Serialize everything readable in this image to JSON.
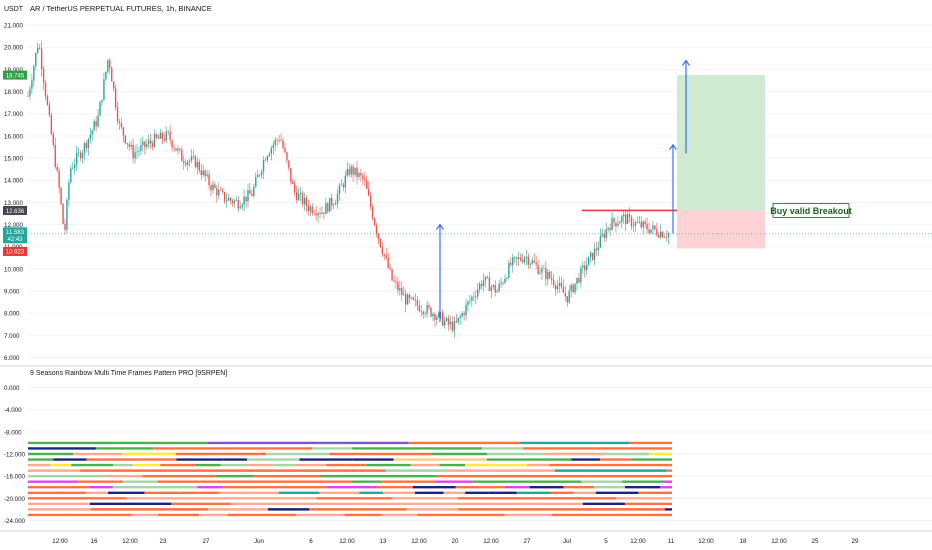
{
  "header": {
    "currency": "USDT",
    "symbol_title": "AR / TetherUS PERPETUAL FUTURES, 1h, BINANCE"
  },
  "indicator": {
    "title": "9 Seasons Rainbow Multi Time Frames Pattern PRO [9SRPEN]"
  },
  "annotation": {
    "label": "Buy valid Breakout"
  },
  "colors": {
    "up": "#26a69a",
    "down": "#ef5350",
    "profit_zone": "#c8e6c9",
    "loss_zone": "#ffcdd2",
    "arrow": "#2962ff",
    "level_line": "#f23645"
  },
  "price_badges": [
    {
      "role": "take-profit",
      "text": "18.745",
      "color": "#2e9e47"
    },
    {
      "role": "entry",
      "text": "12.636",
      "color": "#434651"
    },
    {
      "role": "last-price",
      "text": "11.583",
      "color": "#26a69a"
    },
    {
      "role": "countdown",
      "text": "42:43",
      "color": "#26a69a"
    },
    {
      "role": "stop-loss",
      "text": "10.923",
      "color": "#e53935"
    }
  ],
  "chart_data": [
    {
      "type": "candlestick",
      "title": "AR / TetherUS PERPETUAL FUTURES, 1h, BINANCE",
      "y_axis_unit": "USDT",
      "y_ticks": [
        "21.000",
        "20.000",
        "19.000",
        "18.000",
        "17.000",
        "16.000",
        "15.000",
        "14.000",
        "13.000",
        "12.000",
        "11.000",
        "10.000",
        "9.000",
        "8.000",
        "7.000",
        "6.000"
      ],
      "ylim": [
        5.8,
        21.5
      ],
      "x_ticks": [
        "12:00",
        "16",
        "12:00",
        "23",
        "27",
        "Jun",
        "6",
        "12:00",
        "13",
        "12:00",
        "20",
        "12:00",
        "27",
        "Jul",
        "5",
        "12:00",
        "11",
        "12:00",
        "18",
        "12:00",
        "25",
        "29"
      ],
      "price_path": [
        [
          0,
          17.8
        ],
        [
          1.5,
          20.3
        ],
        [
          3,
          16.8
        ],
        [
          4.5,
          13.5
        ],
        [
          5.2,
          11.5
        ],
        [
          6,
          14.5
        ],
        [
          8,
          15.5
        ],
        [
          10,
          16.8
        ],
        [
          11.5,
          19.6
        ],
        [
          13,
          16.5
        ],
        [
          15,
          15.2
        ],
        [
          18,
          15.8
        ],
        [
          20,
          16.0
        ],
        [
          22,
          15.0
        ],
        [
          24,
          14.8
        ],
        [
          26,
          13.8
        ],
        [
          28,
          13.2
        ],
        [
          30,
          13.0
        ],
        [
          32,
          13.4
        ],
        [
          34,
          15.2
        ],
        [
          36,
          16.0
        ],
        [
          38,
          13.5
        ],
        [
          40,
          12.8
        ],
        [
          42,
          12.6
        ],
        [
          44,
          13.2
        ],
        [
          46,
          14.5
        ],
        [
          48,
          14.0
        ],
        [
          50,
          11.5
        ],
        [
          52,
          9.5
        ],
        [
          54,
          8.6
        ],
        [
          56,
          8.3
        ],
        [
          58,
          8.0
        ],
        [
          60,
          7.5
        ],
        [
          61,
          7.4
        ],
        [
          63,
          8.5
        ],
        [
          65,
          9.5
        ],
        [
          67,
          9.0
        ],
        [
          69,
          10.2
        ],
        [
          71,
          10.6
        ],
        [
          73,
          10.0
        ],
        [
          75,
          9.5
        ],
        [
          77,
          8.7
        ],
        [
          79,
          9.8
        ],
        [
          81,
          10.8
        ],
        [
          83,
          12.0
        ],
        [
          85,
          12.3
        ],
        [
          87,
          12.0
        ],
        [
          89,
          11.8
        ],
        [
          91,
          11.6
        ]
      ],
      "levels": {
        "take_profit": 18.745,
        "entry": 12.636,
        "last_price": 11.583,
        "stop_loss": 10.923
      }
    },
    {
      "type": "heatmap",
      "title": "9 Seasons Rainbow Multi Time Frames Pattern PRO [9SRPEN]",
      "y_ticks": [
        "0.000",
        "-4.000",
        "-8.000",
        "-12.000",
        "-16.000",
        "-20.000",
        "-24.000"
      ],
      "ylim": [
        -25,
        1
      ],
      "rows": [
        {
          "y": -10.0,
          "colors": [
            "#ff7043",
            "#7e57c2",
            "#26a69a",
            "#ff7043",
            "#ffeb3b",
            "#4caf50",
            "#1a237e"
          ]
        },
        {
          "y": -11.0,
          "colors": [
            "#ff7043",
            "#a5d6a7",
            "#ffcc80",
            "#4caf50",
            "#1a237e",
            "#ff7043"
          ]
        },
        {
          "y": -12.0,
          "colors": [
            "#ff7043",
            "#ffab91",
            "#4caf50",
            "#a5d6a7",
            "#ff7043",
            "#ffeb3b"
          ]
        },
        {
          "y": -13.0,
          "colors": [
            "#ff7043",
            "#a5d6a7",
            "#ffcc80",
            "#1a237e",
            "#4caf50"
          ]
        },
        {
          "y": -14.0,
          "colors": [
            "#ff7043",
            "#ffab91",
            "#4caf50",
            "#ffeb3b",
            "#a5d6a7"
          ]
        },
        {
          "y": -15.0,
          "colors": [
            "#ff7043",
            "#a5d6a7",
            "#26a69a",
            "#ffab91"
          ]
        },
        {
          "y": -16.0,
          "colors": [
            "#ff7043",
            "#ffab91",
            "#a5d6a7",
            "#4caf50"
          ]
        },
        {
          "y": -17.0,
          "colors": [
            "#e040fb",
            "#ff7043",
            "#4caf50",
            "#a5d6a7"
          ]
        },
        {
          "y": -18.0,
          "colors": [
            "#e040fb",
            "#ff7043",
            "#1a237e",
            "#a5d6a7"
          ]
        },
        {
          "y": -19.0,
          "colors": [
            "#ff7043",
            "#ffab91",
            "#1a237e",
            "#26a69a"
          ]
        },
        {
          "y": -20.0,
          "colors": [
            "#ff7043",
            "#ffab91",
            "#1a237e"
          ]
        },
        {
          "y": -21.0,
          "colors": [
            "#ff7043",
            "#ffab91",
            "#ff7043",
            "#1a237e"
          ]
        },
        {
          "y": -22.0,
          "colors": [
            "#ff7043",
            "#ffab91",
            "#1a237e",
            "#ff7043"
          ]
        },
        {
          "y": -23.0,
          "colors": [
            "#ff7043",
            "#ffab91",
            "#ff7043"
          ]
        }
      ]
    }
  ]
}
